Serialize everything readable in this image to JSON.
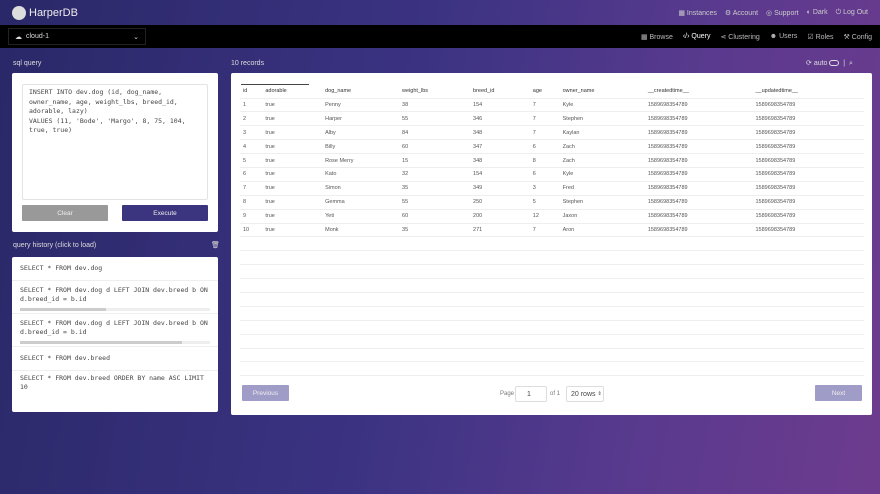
{
  "header": {
    "brand": "HarperDB",
    "links": [
      "Instances",
      "Account",
      "Support",
      "Dark",
      "Log Out"
    ]
  },
  "nav": {
    "instance": "cloud-1",
    "links": [
      "Browse",
      "Query",
      "Clustering",
      "Users",
      "Roles",
      "Config"
    ],
    "active": "Query"
  },
  "query": {
    "label": "sql query",
    "text": "INSERT INTO dev.dog (id, dog_name,\nowner_name, age, weight_lbs, breed_id,\nadorable, lazy)\nVALUES (11, 'Bode', 'Margo', 8, 75, 104,\ntrue, true)",
    "clear": "Clear",
    "execute": "Execute"
  },
  "history": {
    "label": "query history (click to load)",
    "items": [
      "SELECT * FROM dev.dog",
      "SELECT * FROM dev.dog d LEFT JOIN dev.breed b ON d.breed_id = b.id",
      "SELECT * FROM dev.dog d LEFT JOIN dev.breed b ON d.breed_id = b.id",
      "SELECT * FROM dev.breed",
      "SELECT * FROM dev.breed ORDER BY name ASC LIMIT 10"
    ]
  },
  "results": {
    "count": "10 records",
    "auto": "auto",
    "columns": [
      "id",
      "adorable",
      "dog_name",
      "weight_lbs",
      "breed_id",
      "age",
      "owner_name",
      "__createdtime__",
      "__updatedtime__"
    ],
    "rows": [
      [
        "1",
        "true",
        "Penny",
        "38",
        "154",
        "7",
        "Kyle",
        "1589698354789",
        "1589698354789"
      ],
      [
        "2",
        "true",
        "Harper",
        "55",
        "346",
        "7",
        "Stephen",
        "1589698354789",
        "1589698354789"
      ],
      [
        "3",
        "true",
        "Alby",
        "84",
        "348",
        "7",
        "Kaylan",
        "1589698354789",
        "1589698354789"
      ],
      [
        "4",
        "true",
        "Billy",
        "60",
        "347",
        "6",
        "Zach",
        "1589698354789",
        "1589698354789"
      ],
      [
        "5",
        "true",
        "Rose Merry",
        "15",
        "348",
        "8",
        "Zach",
        "1589698354789",
        "1589698354789"
      ],
      [
        "6",
        "true",
        "Kato",
        "32",
        "154",
        "6",
        "Kyle",
        "1589698354789",
        "1589698354789"
      ],
      [
        "7",
        "true",
        "Simon",
        "35",
        "349",
        "3",
        "Fred",
        "1589698354789",
        "1589698354789"
      ],
      [
        "8",
        "true",
        "Gemma",
        "55",
        "250",
        "5",
        "Stephen",
        "1589698354789",
        "1589698354789"
      ],
      [
        "9",
        "true",
        "Yeti",
        "60",
        "200",
        "12",
        "Jaxon",
        "1589698354789",
        "1589698354789"
      ],
      [
        "10",
        "true",
        "Monk",
        "35",
        "271",
        "7",
        "Aron",
        "1589698354789",
        "1589698354789"
      ]
    ]
  },
  "pagination": {
    "previous": "Previous",
    "page_label": "Page",
    "page": "1",
    "of": "of 1",
    "rows": "20 rows",
    "next": "Next"
  }
}
